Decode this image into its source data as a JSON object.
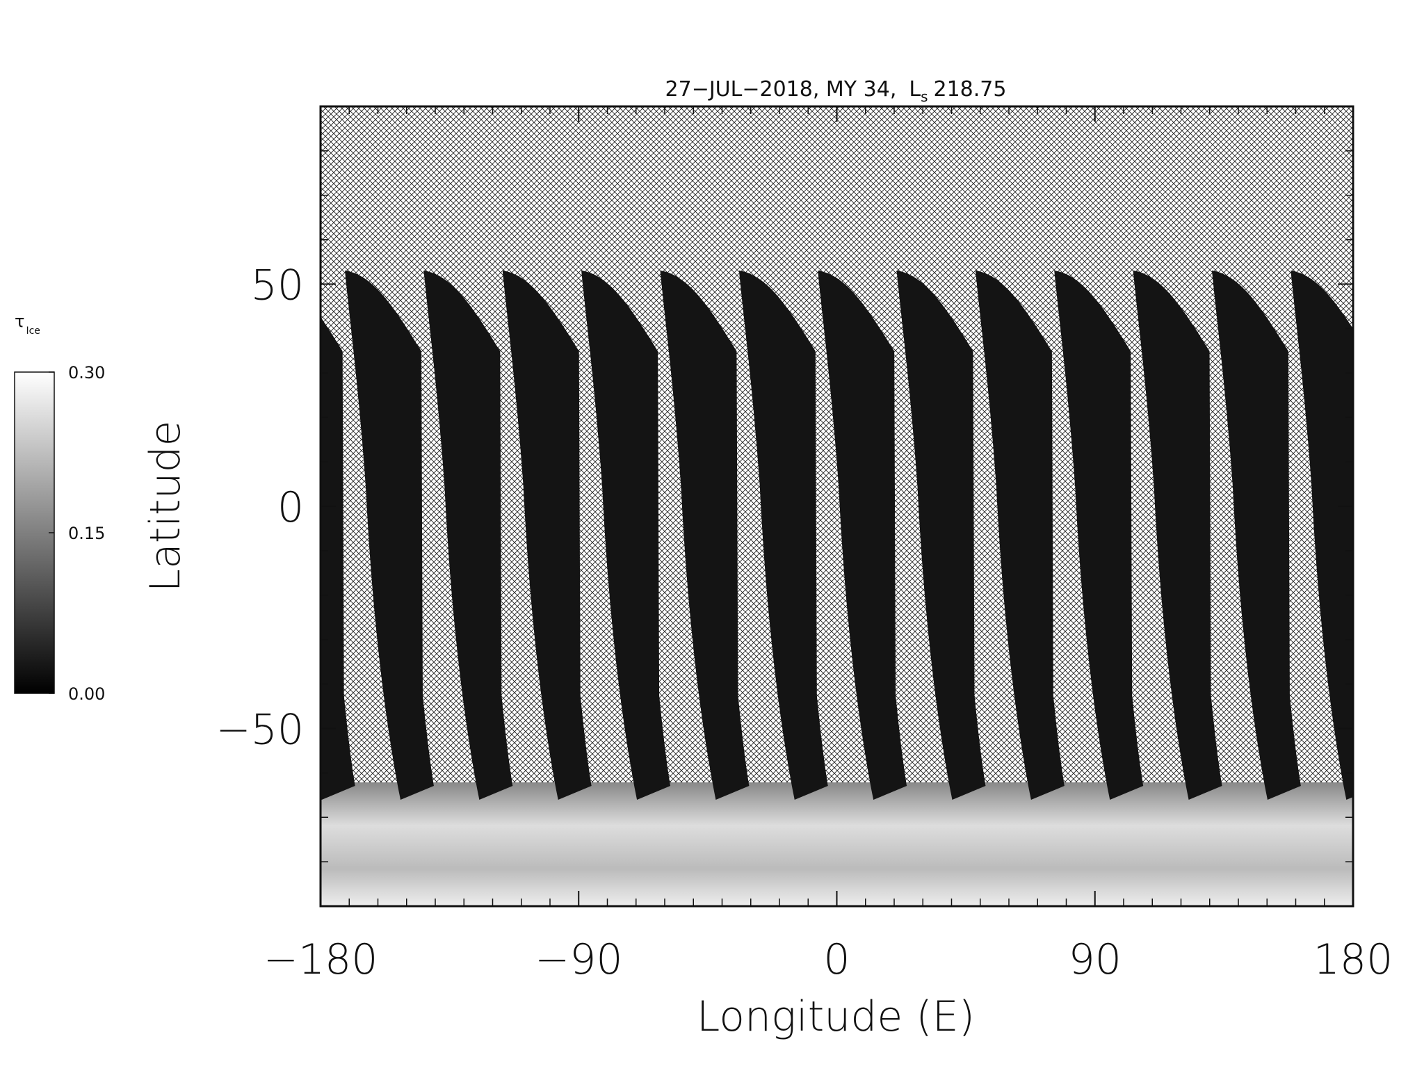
{
  "chart_data": {
    "type": "map",
    "title": "27−JUL−2018, MY 34,",
    "ls_symbol": "L",
    "ls_subscript": "s",
    "ls_value": "218.75",
    "x_label": "Longitude (E)",
    "y_label": "Latitude",
    "xlim": [
      -180,
      180
    ],
    "xticks": [
      {
        "value": -180,
        "label": "−180"
      },
      {
        "value": -90,
        "label": "−90"
      },
      0,
      90,
      180
    ],
    "ylim": [
      -90,
      90
    ],
    "yticks": [
      {
        "value": -50,
        "label": "−50"
      },
      0,
      50
    ],
    "colorbar": {
      "symbol": "τ",
      "subscript": "Ice",
      "lim": [
        0,
        0.3
      ],
      "ticks": [
        {
          "value": 0,
          "label": "0.00"
        },
        {
          "value": 0.15,
          "label": "0.15"
        },
        {
          "value": 0.3,
          "label": "0.30"
        }
      ]
    }
  }
}
